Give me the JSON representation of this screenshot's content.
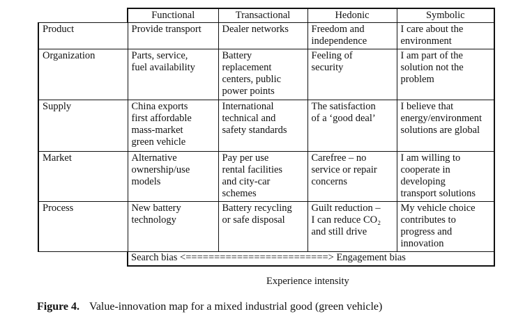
{
  "table": {
    "columns": [
      "Functional",
      "Transactional",
      "Hedonic",
      "Symbolic"
    ],
    "rows": [
      {
        "label": "Product",
        "cells": [
          [
            "Provide transport"
          ],
          [
            "Dealer networks"
          ],
          [
            "Freedom and",
            "independence"
          ],
          [
            "I care about the",
            "environment"
          ]
        ]
      },
      {
        "label": "Organization",
        "cells": [
          [
            "Parts, service,",
            "fuel availability"
          ],
          [
            "Battery",
            "replacement",
            "centers, public",
            "power points"
          ],
          [
            "Feeling of",
            "security"
          ],
          [
            "I am part of the",
            "solution not the",
            "problem"
          ]
        ]
      },
      {
        "label": "Supply",
        "cells": [
          [
            "China exports",
            "first affordable",
            "mass-market",
            "green vehicle"
          ],
          [
            "International",
            "technical and",
            "safety standards"
          ],
          [
            "The satisfaction",
            "of a ‘good deal’"
          ],
          [
            "I believe that",
            "energy/environment",
            "solutions are global"
          ]
        ]
      },
      {
        "label": "Market",
        "cells": [
          [
            "Alternative",
            "ownership/use",
            "models"
          ],
          [
            "Pay per use",
            "rental facilities",
            "and city-car",
            "schemes"
          ],
          [
            "Carefree – no",
            "service or repair",
            "concerns"
          ],
          [
            "I am willing to",
            "cooperate in",
            "developing",
            "transport solutions"
          ]
        ]
      },
      {
        "label": "Process",
        "cells": [
          [
            "New battery",
            "technology"
          ],
          [
            "Battery recycling",
            "or safe disposal"
          ],
          [
            "Guilt reduction –",
            "I can reduce CO₂",
            "and still drive"
          ],
          [
            "My vehicle choice",
            "contributes to",
            "progress and",
            "innovation"
          ]
        ]
      }
    ],
    "bias_row": "Search bias <=========================> Engagement bias"
  },
  "axis_label": "Experience intensity",
  "caption": {
    "figure_label": "Figure 4.",
    "text": "Value-innovation map for a mixed industrial good (green vehicle)"
  }
}
